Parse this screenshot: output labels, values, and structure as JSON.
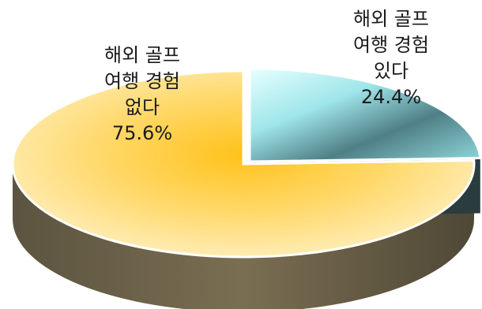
{
  "chart_data": {
    "type": "pie",
    "slices": [
      {
        "label_lines": [
          "해외 골프",
          "여행 경험",
          "없다"
        ],
        "value": 75.6,
        "value_label": "75.6%",
        "color": "#ffc21a"
      },
      {
        "label_lines": [
          "해외 골프",
          "여행 경험",
          "있다"
        ],
        "value": 24.4,
        "value_label": "24.4%",
        "color": "#7fc7c4"
      }
    ],
    "style": "3d-exploded",
    "legend": "none"
  }
}
